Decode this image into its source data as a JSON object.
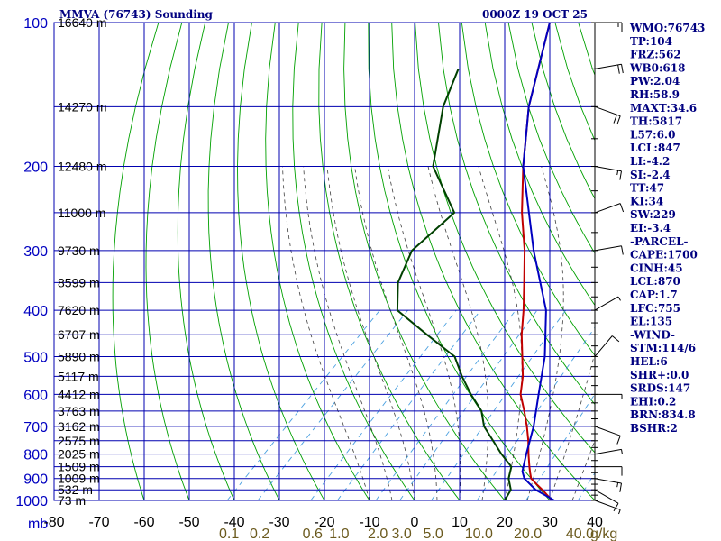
{
  "chart_data": {
    "type": "line",
    "subtype": "skew-t log-p sounding",
    "title": "MMVA (76743) Sounding",
    "datetime": "0000Z 19 OCT 25",
    "xlabel": "",
    "ylabel": "mb",
    "xlim": [
      -80,
      40
    ],
    "ylim": [
      1000,
      100
    ],
    "x_ticks": [
      "-80",
      "-70",
      "-60",
      "-50",
      "-40",
      "-30",
      "-20",
      "-10",
      "0",
      "10",
      "20",
      "30",
      "40"
    ],
    "pressure_levels": [
      1000,
      900,
      800,
      700,
      600,
      500,
      400,
      300,
      200,
      100
    ],
    "pressure_tick_labels": [
      "1000",
      "900",
      "800",
      "700",
      "600",
      "500",
      "400",
      "300",
      "200",
      "100"
    ],
    "pressure_unit_label": "mb",
    "height_labels": [
      {
        "p": 100,
        "label": "16640 m"
      },
      {
        "p": 150,
        "label": "14270 m"
      },
      {
        "p": 200,
        "label": "12480 m"
      },
      {
        "p": 250,
        "label": "11000 m"
      },
      {
        "p": 300,
        "label": "9730 m"
      },
      {
        "p": 350,
        "label": "8599 m"
      },
      {
        "p": 400,
        "label": "7620 m"
      },
      {
        "p": 450,
        "label": "6707 m"
      },
      {
        "p": 500,
        "label": "5890 m"
      },
      {
        "p": 550,
        "label": "5117 m"
      },
      {
        "p": 600,
        "label": "4412 m"
      },
      {
        "p": 650,
        "label": "3763 m"
      },
      {
        "p": 700,
        "label": "3162 m"
      },
      {
        "p": 750,
        "label": "2575 m"
      },
      {
        "p": 800,
        "label": "2025 m"
      },
      {
        "p": 850,
        "label": "1509 m"
      },
      {
        "p": 900,
        "label": "1009 m"
      },
      {
        "p": 950,
        "label": "532 m"
      },
      {
        "p": 1000,
        "label": "73 m"
      }
    ],
    "mixing_ratio_labels": [
      "0.1",
      "0.2",
      "0.6",
      "1.0",
      "2.0",
      "3.0",
      "5.0",
      "10.0",
      "20.0",
      "40.0"
    ],
    "mixing_ratio_unit": "g/kg",
    "series": [
      {
        "name": "Temperature",
        "color": "#c00000",
        "points": [
          [
            1004,
            31.5
          ],
          [
            1000,
            30.5
          ],
          [
            950,
            26
          ],
          [
            925,
            23.5
          ],
          [
            900,
            21
          ],
          [
            875,
            19.5
          ],
          [
            850,
            18
          ],
          [
            800,
            15
          ],
          [
            750,
            12
          ],
          [
            700,
            8.5
          ],
          [
            650,
            4.5
          ],
          [
            600,
            0
          ],
          [
            550,
            -3.5
          ],
          [
            500,
            -8
          ],
          [
            450,
            -13
          ],
          [
            400,
            -18
          ],
          [
            350,
            -24
          ],
          [
            300,
            -31
          ],
          [
            250,
            -40
          ],
          [
            200,
            -50
          ],
          [
            150,
            -62
          ],
          [
            100,
            -76
          ]
        ]
      },
      {
        "name": "Dewpoint",
        "color": "#004000",
        "points": [
          [
            1004,
            23
          ],
          [
            1000,
            20
          ],
          [
            950,
            19
          ],
          [
            900,
            16
          ],
          [
            850,
            14
          ],
          [
            800,
            9
          ],
          [
            700,
            -1
          ],
          [
            650,
            -5
          ],
          [
            600,
            -11
          ],
          [
            550,
            -17
          ],
          [
            500,
            -23
          ],
          [
            450,
            -34
          ],
          [
            400,
            -46
          ],
          [
            350,
            -52
          ],
          [
            300,
            -56
          ],
          [
            250,
            -55
          ],
          [
            200,
            -70
          ],
          [
            150,
            -81
          ],
          [
            125,
            -86
          ]
        ]
      },
      {
        "name": "Parcel",
        "color": "#0000c0",
        "points": [
          [
            1004,
            31.5
          ],
          [
            950,
            24.5
          ],
          [
            900,
            19.5
          ],
          [
            870,
            17.5
          ],
          [
            800,
            14.5
          ],
          [
            700,
            10
          ],
          [
            600,
            4
          ],
          [
            500,
            -3
          ],
          [
            400,
            -13
          ],
          [
            300,
            -29
          ],
          [
            200,
            -50
          ],
          [
            150,
            -62
          ],
          [
            100,
            -76
          ]
        ]
      }
    ],
    "indices": [
      "WMO:76743",
      "TP:104",
      "FRZ:562",
      "WB0:618",
      "PW:2.04",
      "RH:58.9",
      "MAXT:34.6",
      "TH:5817",
      "L57:6.0",
      "LCL:847",
      "LI:-4.2",
      "SI:-2.4",
      "TT:47",
      "KI:34",
      "SW:229",
      "EI:-3.4",
      "-PARCEL-",
      "CAPE:1700",
      "CINH:45",
      "LCL:870",
      "CAP:1.7",
      "LFC:755",
      "EL:135",
      "-WIND-",
      "STM:114/6",
      "HEL:6",
      "SHR+:0.0",
      "SRDS:147",
      "EHI:0.2",
      "BRN:834.8",
      "BSHR:2"
    ],
    "wind_barbs": [
      {
        "p": 1000,
        "dir": 110,
        "spd": 5
      },
      {
        "p": 950,
        "dir": 120,
        "spd": 10
      },
      {
        "p": 900,
        "dir": 100,
        "spd": 15
      },
      {
        "p": 850,
        "dir": 90,
        "spd": 10
      },
      {
        "p": 800,
        "dir": 80,
        "spd": 5
      },
      {
        "p": 700,
        "dir": 110,
        "spd": 10
      },
      {
        "p": 600,
        "dir": 90,
        "spd": 5
      },
      {
        "p": 500,
        "dir": 40,
        "spd": 10
      },
      {
        "p": 400,
        "dir": 60,
        "spd": 5
      },
      {
        "p": 300,
        "dir": 80,
        "spd": 10
      },
      {
        "p": 250,
        "dir": 70,
        "spd": 10
      },
      {
        "p": 200,
        "dir": 100,
        "spd": 15
      },
      {
        "p": 150,
        "dir": 110,
        "spd": 20
      },
      {
        "p": 125,
        "dir": 80,
        "spd": 20
      },
      {
        "p": 100,
        "dir": 90,
        "spd": 15
      }
    ],
    "colors": {
      "grid": "#0000b0",
      "axis_labels": "#0000c0",
      "dry_adiabat": "#00a000",
      "moist_adiabat": "#404040",
      "mixing_ratio": "#4aa0e0",
      "mixing_label": "#6b5a1e",
      "temperature": "#c00000",
      "dewpoint": "#004000",
      "parcel": "#0000c0"
    }
  }
}
